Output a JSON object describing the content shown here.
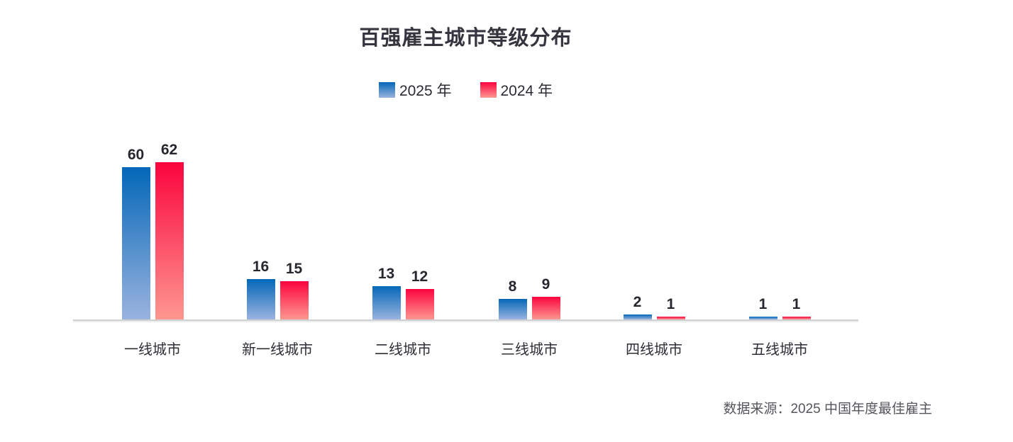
{
  "chart_data": {
    "type": "bar",
    "title": "百强雇主城市等级分布",
    "categories": [
      "一线城市",
      "新一线城市",
      "二线城市",
      "三线城市",
      "四线城市",
      "五线城市"
    ],
    "series": [
      {
        "name": "2025 年",
        "values": [
          60,
          16,
          13,
          8,
          2,
          1
        ],
        "color_top": "#0467b8",
        "color_bottom": "#9ab3df"
      },
      {
        "name": "2024 年",
        "values": [
          62,
          15,
          12,
          9,
          1,
          1
        ],
        "color_top": "#fb043f",
        "color_bottom": "#fe9790"
      }
    ],
    "value_labels_shown": true,
    "legend_position": "top-center",
    "xlabel": "",
    "ylabel": "",
    "ylim": [
      0,
      65
    ],
    "gridlines": false,
    "y_axis_shown": false,
    "axis_baseline_color": "#cfd0d4"
  },
  "source_note": "数据来源：2025 中国年度最佳雇主",
  "colors": {
    "title": "#35353f",
    "value_label": "#26262e",
    "category_label": "#2e2e36",
    "source": "#55555c",
    "background": "#ffffff"
  }
}
